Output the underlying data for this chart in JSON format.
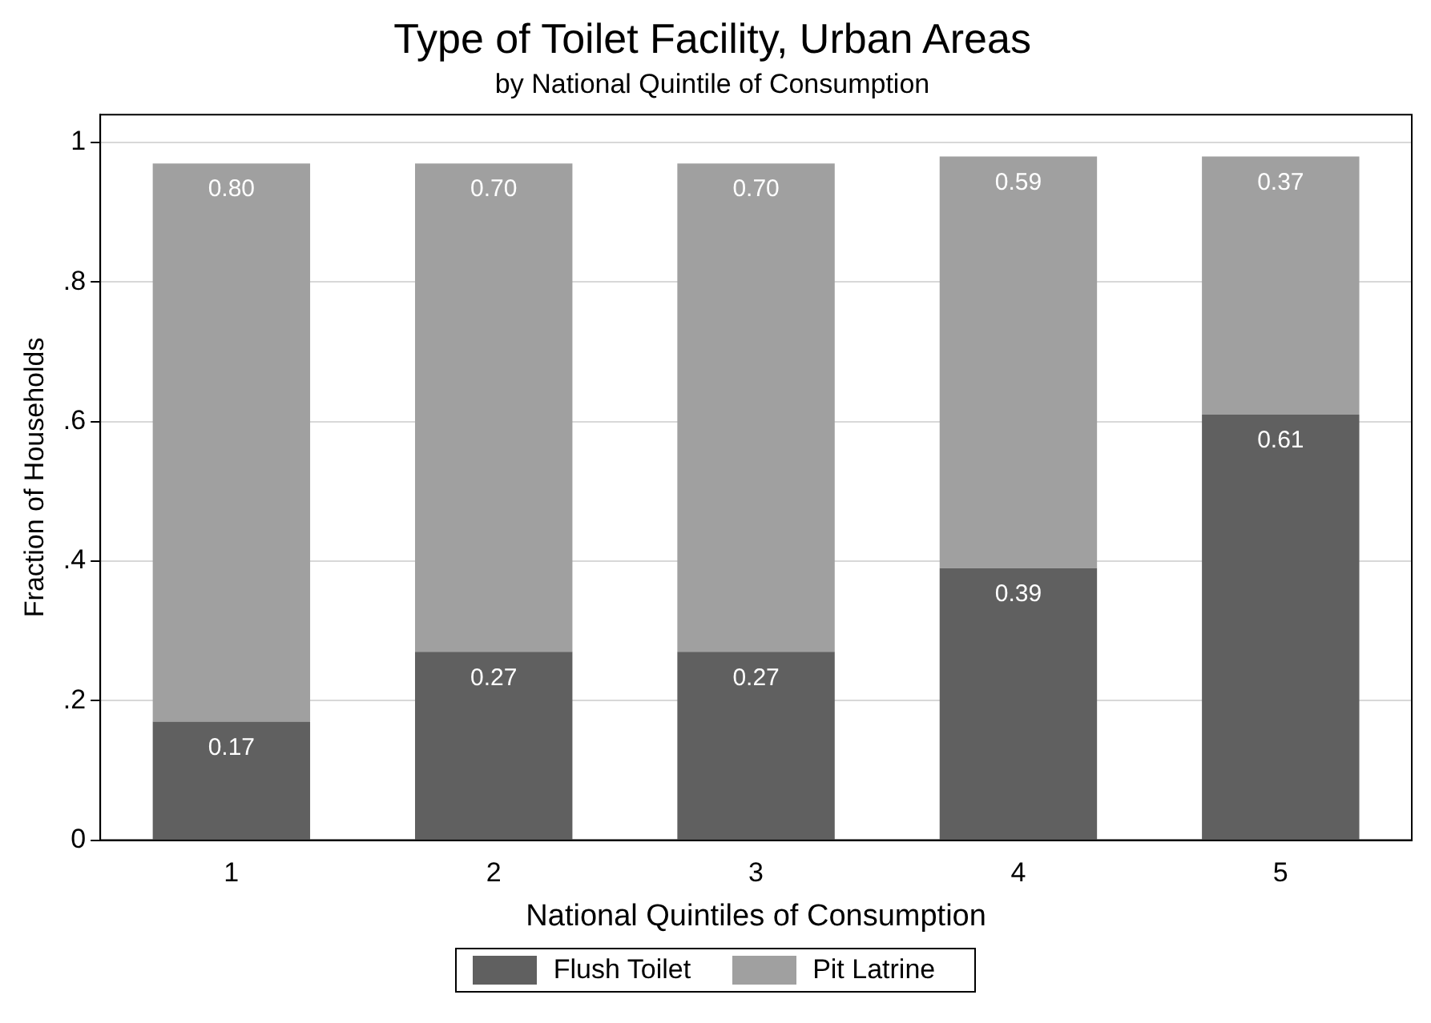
{
  "chart_data": {
    "type": "bar",
    "title": "Type of Toilet Facility, Urban Areas",
    "subtitle": "by National Quintile of Consumption",
    "xlabel": "National Quintiles of Consumption",
    "ylabel": "Fraction of Households",
    "categories": [
      "1",
      "2",
      "3",
      "4",
      "5"
    ],
    "stacked": true,
    "series": [
      {
        "name": "Flush Toilet",
        "color": "#606060",
        "values": [
          0.17,
          0.27,
          0.27,
          0.39,
          0.61
        ],
        "value_labels": [
          "0.17",
          "0.27",
          "0.27",
          "0.39",
          "0.61"
        ]
      },
      {
        "name": "Pit Latrine",
        "color": "#a0a0a0",
        "values": [
          0.8,
          0.7,
          0.7,
          0.59,
          0.37
        ],
        "value_labels": [
          "0.80",
          "0.70",
          "0.70",
          "0.59",
          "0.37"
        ]
      }
    ],
    "ylim": [
      0,
      1.04
    ],
    "yticks": [
      0,
      {
        "value": 0.2,
        "label": ".2"
      },
      {
        "value": 0.4,
        "label": ".4"
      },
      {
        "value": 0.6,
        "label": ".6"
      },
      {
        "value": 0.8,
        "label": ".8"
      },
      1
    ],
    "grid": "y",
    "legend": "bottom"
  }
}
